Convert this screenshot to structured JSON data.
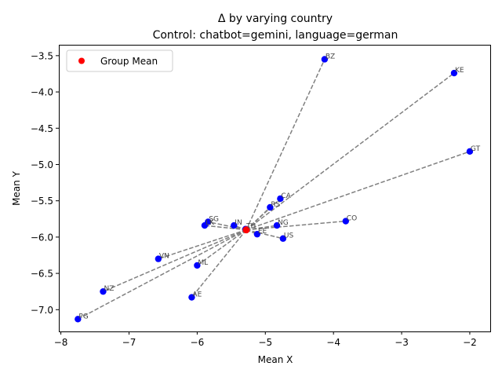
{
  "chart_data": {
    "type": "scatter",
    "title": "Δ by varying country",
    "subtitle": "Control: chatbot=gemini, language=german",
    "xlabel": "Mean X",
    "ylabel": "Mean Y",
    "xlim": [
      -8.03,
      -1.7
    ],
    "ylim": [
      -7.3,
      -3.35
    ],
    "xticks": [
      -8,
      -7,
      -6,
      -5,
      -4,
      -3,
      -2
    ],
    "yticks": [
      -7.0,
      -6.5,
      -6.0,
      -5.5,
      -5.0,
      -4.5,
      -4.0,
      -3.5
    ],
    "xtick_labels": [
      "−8",
      "−7",
      "−6",
      "−5",
      "−4",
      "−3",
      "−2"
    ],
    "ytick_labels": [
      "−7.0",
      "−6.5",
      "−6.0",
      "−5.5",
      "−5.0",
      "−4.5",
      "−4.0",
      "−3.5"
    ],
    "grid": false,
    "legend": {
      "position": "top-left",
      "label": "Group Mean"
    },
    "group_mean": {
      "x": -5.28,
      "y": -5.9
    },
    "points": [
      {
        "label": "BZ",
        "x": -4.13,
        "y": -3.55
      },
      {
        "label": "KE",
        "x": -2.23,
        "y": -3.74
      },
      {
        "label": "GT",
        "x": -2.0,
        "y": -4.82
      },
      {
        "label": "CA",
        "x": -4.78,
        "y": -5.47
      },
      {
        "label": "RS",
        "x": -4.93,
        "y": -5.59
      },
      {
        "label": "CO",
        "x": -3.82,
        "y": -5.78
      },
      {
        "label": "SG",
        "x": -5.84,
        "y": -5.79
      },
      {
        "label": "NG",
        "x": -4.83,
        "y": -5.84
      },
      {
        "label": "IN",
        "x": -5.46,
        "y": -5.84
      },
      {
        "label": "LK",
        "x": -5.89,
        "y": -5.84
      },
      {
        "label": "TH",
        "x": -5.29,
        "y": -5.89
      },
      {
        "label": "EE",
        "x": -5.12,
        "y": -5.96
      },
      {
        "label": "US",
        "x": -4.74,
        "y": -6.02
      },
      {
        "label": "VN",
        "x": -6.57,
        "y": -6.3
      },
      {
        "label": "ML",
        "x": -6.0,
        "y": -6.39
      },
      {
        "label": "NZ",
        "x": -7.38,
        "y": -6.75
      },
      {
        "label": "AE",
        "x": -6.08,
        "y": -6.83
      },
      {
        "label": "PG",
        "x": -7.75,
        "y": -7.13
      }
    ],
    "colors": {
      "points": "#0000ff",
      "mean": "#ff0000",
      "lines": "#808080",
      "point_labels": "#444444"
    }
  }
}
